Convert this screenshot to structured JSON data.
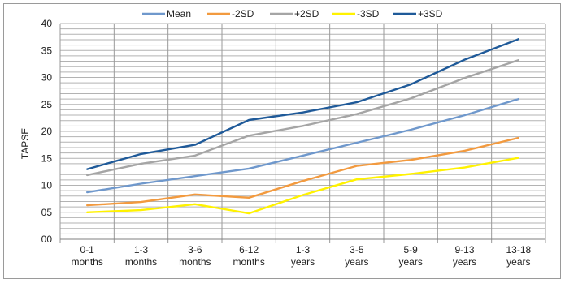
{
  "chart_data": {
    "type": "line",
    "title": "",
    "xlabel": "",
    "ylabel": "TAPSE",
    "ylim": [
      0,
      40
    ],
    "y_ticks": [
      {
        "value": 0,
        "label": "00"
      },
      {
        "value": 5,
        "label": "05"
      },
      {
        "value": 10,
        "label": "10"
      },
      {
        "value": 15,
        "label": "15"
      },
      {
        "value": 20,
        "label": "20"
      },
      {
        "value": 25,
        "label": "25"
      },
      {
        "value": 30,
        "label": "30"
      },
      {
        "value": 35,
        "label": "35"
      },
      {
        "value": 40,
        "label": "40"
      }
    ],
    "minor_grid_step": 1,
    "grid": true,
    "legend_position": "top",
    "categories": [
      [
        "0-1",
        "months"
      ],
      [
        "1-3",
        "months"
      ],
      [
        "3-6",
        "months"
      ],
      [
        "6-12",
        "months"
      ],
      [
        "1-3",
        "years"
      ],
      [
        "3-5",
        "years"
      ],
      [
        "5-9",
        "years"
      ],
      [
        "9-13",
        "years"
      ],
      [
        "13-18",
        "years"
      ]
    ],
    "series": [
      {
        "name": "Mean",
        "color": "#6f98cc",
        "values": [
          8.7,
          10.3,
          11.7,
          13.1,
          15.5,
          17.9,
          20.3,
          23.0,
          26.0
        ]
      },
      {
        "name": "-2SD",
        "color": "#f29a3f",
        "values": [
          6.3,
          6.9,
          8.3,
          7.7,
          10.8,
          13.6,
          14.7,
          16.4,
          18.8
        ]
      },
      {
        "name": "+2SD",
        "color": "#a5a5a5",
        "values": [
          11.9,
          14.0,
          15.5,
          19.2,
          21.0,
          23.2,
          26.1,
          29.9,
          33.2
        ]
      },
      {
        "name": "-3SD",
        "color": "#fff200",
        "values": [
          5.0,
          5.4,
          6.5,
          4.8,
          8.2,
          11.1,
          12.1,
          13.3,
          15.1
        ]
      },
      {
        "name": "+3SD",
        "color": "#1f5a99",
        "values": [
          13.0,
          15.8,
          17.5,
          22.1,
          23.5,
          25.4,
          28.7,
          33.3,
          37.1
        ]
      }
    ]
  }
}
